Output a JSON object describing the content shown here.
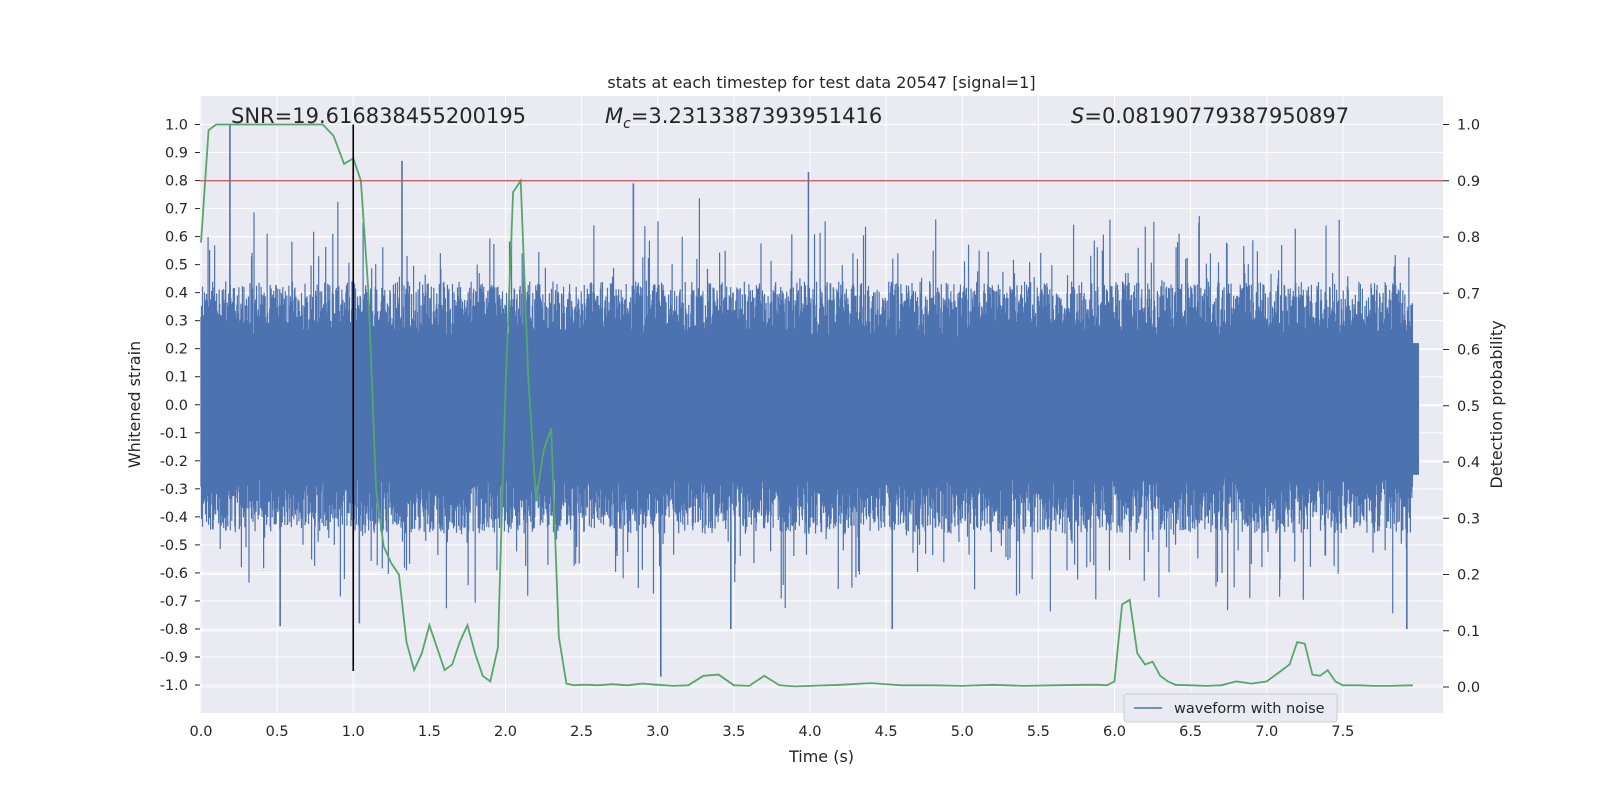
{
  "chart_data": {
    "type": "line",
    "title": "stats at each timestep for test data 20547 [signal=1]",
    "xlabel": "Time (s)",
    "ylabel": "Whitened strain",
    "y2label": "Detection probability",
    "xlim": [
      0.0,
      8.0
    ],
    "ylim": [
      -1.1,
      1.1
    ],
    "y2lim": [
      -0.05,
      1.05
    ],
    "xticks": [
      "0.0",
      "0.5",
      "1.0",
      "1.5",
      "2.0",
      "2.5",
      "3.0",
      "3.5",
      "4.0",
      "4.5",
      "5.0",
      "5.5",
      "6.0",
      "6.5",
      "7.0",
      "7.5"
    ],
    "yticks": [
      "1.0",
      "0.9",
      "0.8",
      "0.7",
      "0.6",
      "0.5",
      "0.4",
      "0.3",
      "0.2",
      "0.1",
      "0.0",
      "-0.1",
      "-0.2",
      "-0.3",
      "-0.4",
      "-0.5",
      "-0.6",
      "-0.7",
      "-0.8",
      "-0.9",
      "-1.0"
    ],
    "y2ticks": [
      "1.0",
      "0.9",
      "0.8",
      "0.7",
      "0.6",
      "0.5",
      "0.4",
      "0.3",
      "0.2",
      "0.1",
      "0.0"
    ],
    "grid": true,
    "legend_position": "lower-right",
    "annotations": {
      "snr": "SNR=19.616838455200195",
      "mc_prefix": "M",
      "mc_sub": "c",
      "mc_value": "=3.2313387393951416",
      "s_prefix": "S",
      "s_value": "=0.08190779387950897"
    },
    "threshold_probability": 0.9,
    "vline_time": 1.0,
    "series": [
      {
        "name": "waveform with noise",
        "color": "#4c72b0",
        "type": "noise",
        "envelope_typical": [
          -0.35,
          0.35
        ],
        "peaks": [
          {
            "x": 0.19,
            "y": 1.0
          },
          {
            "x": 1.32,
            "y": 0.87
          },
          {
            "x": 2.84,
            "y": 0.79
          },
          {
            "x": 3.99,
            "y": 0.83
          },
          {
            "x": 3.02,
            "y": -0.97
          },
          {
            "x": 1.04,
            "y": -0.78
          },
          {
            "x": 0.52,
            "y": -0.79
          },
          {
            "x": 4.54,
            "y": -0.8
          },
          {
            "x": 7.92,
            "y": -0.8
          },
          {
            "x": 3.48,
            "y": -0.8
          }
        ]
      },
      {
        "name": "",
        "color": "#55a868",
        "type": "line",
        "axis": "y2",
        "x": [
          0.0,
          0.05,
          0.1,
          0.2,
          0.3,
          0.4,
          0.5,
          0.6,
          0.7,
          0.8,
          0.87,
          0.94,
          1.0,
          1.05,
          1.1,
          1.15,
          1.2,
          1.25,
          1.3,
          1.35,
          1.4,
          1.45,
          1.5,
          1.55,
          1.6,
          1.65,
          1.7,
          1.75,
          1.8,
          1.85,
          1.9,
          1.95,
          2.0,
          2.05,
          2.1,
          2.15,
          2.2,
          2.25,
          2.3,
          2.35,
          2.4,
          2.45,
          2.5,
          2.55,
          2.6,
          2.65,
          2.7,
          2.8,
          2.9,
          3.0,
          3.1,
          3.2,
          3.3,
          3.4,
          3.5,
          3.6,
          3.7,
          3.8,
          3.9,
          4.0,
          4.2,
          4.4,
          4.6,
          4.8,
          5.0,
          5.2,
          5.4,
          5.6,
          5.8,
          5.9,
          5.95,
          6.0,
          6.05,
          6.1,
          6.15,
          6.2,
          6.25,
          6.3,
          6.35,
          6.4,
          6.5,
          6.6,
          6.7,
          6.8,
          6.9,
          7.0,
          7.1,
          7.15,
          7.2,
          7.25,
          7.3,
          7.35,
          7.4,
          7.45,
          7.5,
          7.6,
          7.7,
          7.8,
          7.96
        ],
        "y": [
          0.79,
          0.99,
          1.0,
          1.0,
          1.0,
          1.0,
          1.0,
          1.0,
          1.0,
          1.0,
          0.98,
          0.93,
          0.94,
          0.9,
          0.7,
          0.35,
          0.25,
          0.22,
          0.2,
          0.08,
          0.03,
          0.06,
          0.11,
          0.07,
          0.03,
          0.04,
          0.08,
          0.11,
          0.06,
          0.02,
          0.01,
          0.07,
          0.53,
          0.88,
          0.9,
          0.55,
          0.33,
          0.42,
          0.46,
          0.09,
          0.006,
          0.003,
          0.004,
          0.004,
          0.003,
          0.004,
          0.005,
          0.003,
          0.006,
          0.004,
          0.002,
          0.003,
          0.02,
          0.022,
          0.003,
          0.002,
          0.02,
          0.003,
          0.001,
          0.002,
          0.004,
          0.007,
          0.003,
          0.003,
          0.002,
          0.004,
          0.002,
          0.003,
          0.004,
          0.004,
          0.003,
          0.01,
          0.147,
          0.155,
          0.06,
          0.04,
          0.045,
          0.02,
          0.01,
          0.004,
          0.003,
          0.002,
          0.003,
          0.01,
          0.006,
          0.01,
          0.03,
          0.04,
          0.08,
          0.077,
          0.022,
          0.02,
          0.03,
          0.01,
          0.003,
          0.003,
          0.002,
          0.002,
          0.003
        ]
      }
    ]
  }
}
